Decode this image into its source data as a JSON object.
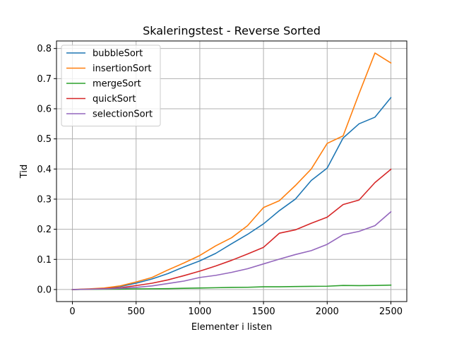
{
  "chart_data": {
    "type": "line",
    "title": "Skaleringstest - Reverse Sorted",
    "xlabel": "Elementer i listen",
    "ylabel": "Tid",
    "xlim": [
      -125,
      2625
    ],
    "ylim": [
      -0.04,
      0.825
    ],
    "xticks": [
      0,
      500,
      1000,
      1500,
      2000,
      2500
    ],
    "xtick_labels": [
      "0",
      "500",
      "1000",
      "1500",
      "2000",
      "2500"
    ],
    "yticks": [
      0.0,
      0.1,
      0.2,
      0.3,
      0.4,
      0.5,
      0.6,
      0.7,
      0.8
    ],
    "ytick_labels": [
      "0.0",
      "0.1",
      "0.2",
      "0.3",
      "0.4",
      "0.5",
      "0.6",
      "0.7",
      "0.8"
    ],
    "grid": true,
    "legend_position": "top-left",
    "x": [
      0,
      125,
      250,
      375,
      500,
      625,
      750,
      875,
      1000,
      1125,
      1250,
      1375,
      1500,
      1625,
      1750,
      1875,
      2000,
      2125,
      2250,
      2375,
      2500
    ],
    "series": [
      {
        "name": "bubbleSort",
        "color": "#1f77b4",
        "values": [
          0.0,
          0.001,
          0.004,
          0.01,
          0.021,
          0.035,
          0.053,
          0.075,
          0.095,
          0.12,
          0.152,
          0.183,
          0.218,
          0.262,
          0.3,
          0.362,
          0.403,
          0.503,
          0.55,
          0.572,
          0.637
        ]
      },
      {
        "name": "insertionSort",
        "color": "#ff7f0e",
        "values": [
          0.0,
          0.002,
          0.005,
          0.012,
          0.025,
          0.04,
          0.065,
          0.088,
          0.113,
          0.145,
          0.172,
          0.212,
          0.272,
          0.295,
          0.345,
          0.4,
          0.485,
          0.51,
          0.65,
          0.785,
          0.752
        ]
      },
      {
        "name": "mergeSort",
        "color": "#2ca02c",
        "values": [
          0.0,
          0.0005,
          0.001,
          0.0015,
          0.002,
          0.0025,
          0.003,
          0.004,
          0.005,
          0.006,
          0.007,
          0.0075,
          0.009,
          0.009,
          0.01,
          0.0105,
          0.011,
          0.0135,
          0.013,
          0.0135,
          0.0145
        ]
      },
      {
        "name": "quickSort",
        "color": "#d62728",
        "values": [
          0.0,
          0.001,
          0.003,
          0.006,
          0.013,
          0.021,
          0.032,
          0.046,
          0.061,
          0.078,
          0.097,
          0.118,
          0.14,
          0.187,
          0.198,
          0.22,
          0.24,
          0.282,
          0.297,
          0.355,
          0.399
        ]
      },
      {
        "name": "selectionSort",
        "color": "#9467bd",
        "values": [
          0.0,
          0.001,
          0.002,
          0.004,
          0.007,
          0.012,
          0.02,
          0.028,
          0.04,
          0.047,
          0.057,
          0.069,
          0.085,
          0.101,
          0.116,
          0.129,
          0.15,
          0.182,
          0.193,
          0.212,
          0.258
        ]
      }
    ]
  }
}
